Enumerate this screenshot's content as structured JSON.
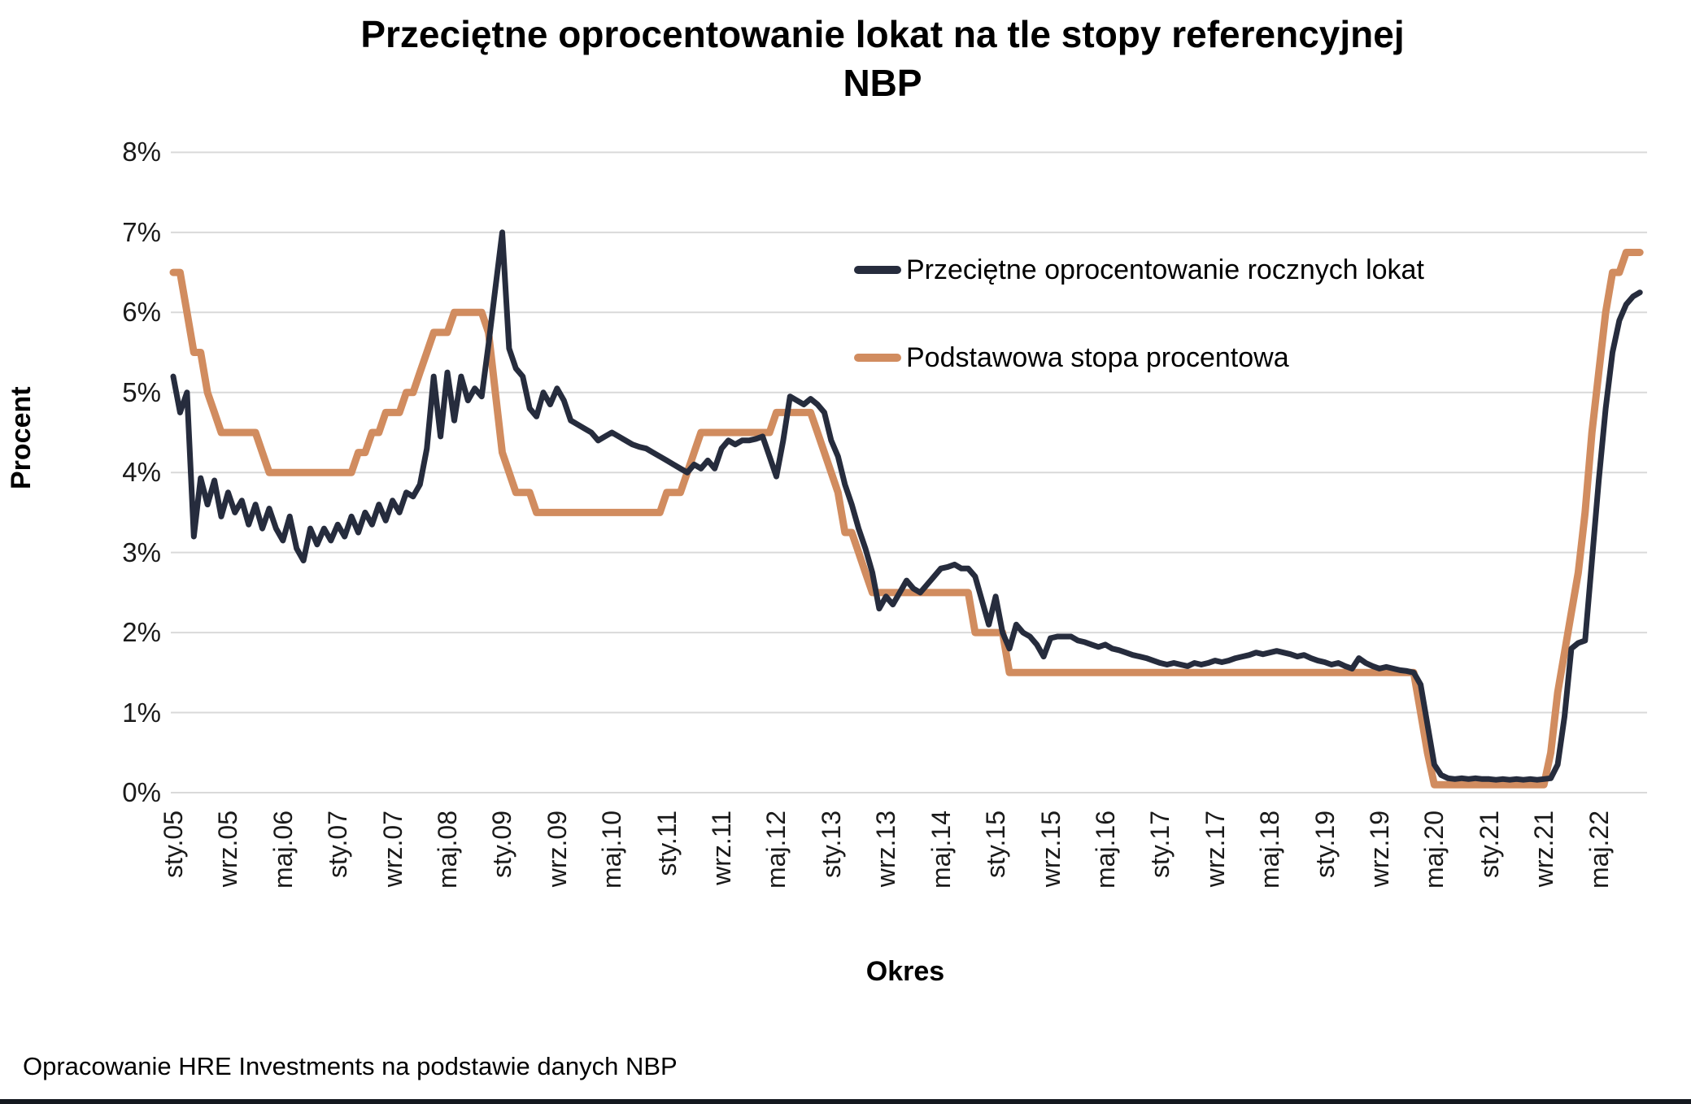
{
  "title": {
    "line1": "Przeciętne oprocentowanie lokat na tle stopy referencyjnej",
    "line2": "NBP"
  },
  "y_axis": {
    "label": "Procent",
    "ticks": [
      "0%",
      "1%",
      "2%",
      "3%",
      "4%",
      "5%",
      "6%",
      "7%",
      "8%"
    ]
  },
  "x_axis": {
    "label": "Okres",
    "ticks": [
      "sty.05",
      "wrz.05",
      "maj.06",
      "sty.07",
      "wrz.07",
      "maj.08",
      "sty.09",
      "wrz.09",
      "maj.10",
      "sty.11",
      "wrz.11",
      "maj.12",
      "sty.13",
      "wrz.13",
      "maj.14",
      "sty.15",
      "wrz.15",
      "maj.16",
      "sty.17",
      "wrz.17",
      "maj.18",
      "sty.19",
      "wrz.19",
      "maj.20",
      "sty.21",
      "wrz.21",
      "maj.22"
    ]
  },
  "footer": "Opracowanie HRE Investments na podstawie danych NBP",
  "colors": {
    "grid": "#D9D9D9",
    "background": "#FFFFFF",
    "bottom_rule": "#14181f",
    "deposit_line": "#262C3D",
    "reference_line": "#D18C5F"
  },
  "chart_data": {
    "type": "line",
    "title": "Przeciętne oprocentowanie lokat na tle stopy referencyjnej NBP",
    "xlabel": "Okres",
    "ylabel": "Procent",
    "ylim": [
      0,
      8
    ],
    "grid": true,
    "legend_position": "upper-right-inside",
    "x_unit": "month",
    "x_range": "2005-01 to 2022-11",
    "tick_every_months": 8,
    "series": [
      {
        "name": "Przeciętne oprocentowanie rocznych lokat",
        "color": "#262C3D",
        "stroke_width": 7,
        "values": [
          5.2,
          4.75,
          5.0,
          3.2,
          3.93,
          3.6,
          3.9,
          3.45,
          3.75,
          3.5,
          3.65,
          3.35,
          3.6,
          3.3,
          3.55,
          3.3,
          3.15,
          3.45,
          3.05,
          2.9,
          3.3,
          3.1,
          3.3,
          3.15,
          3.35,
          3.2,
          3.45,
          3.25,
          3.5,
          3.35,
          3.6,
          3.4,
          3.65,
          3.5,
          3.75,
          3.7,
          3.85,
          4.3,
          5.2,
          4.45,
          5.25,
          4.65,
          5.2,
          4.9,
          5.05,
          4.95,
          5.6,
          6.3,
          7.0,
          5.55,
          5.3,
          5.2,
          4.8,
          4.7,
          5.0,
          4.85,
          5.05,
          4.9,
          4.65,
          4.6,
          4.55,
          4.5,
          4.4,
          4.45,
          4.5,
          4.45,
          4.4,
          4.35,
          4.32,
          4.3,
          4.25,
          4.2,
          4.15,
          4.1,
          4.05,
          4.0,
          4.1,
          4.05,
          4.15,
          4.05,
          4.3,
          4.4,
          4.35,
          4.4,
          4.4,
          4.42,
          4.45,
          4.2,
          3.95,
          4.4,
          4.95,
          4.9,
          4.85,
          4.92,
          4.85,
          4.75,
          4.4,
          4.2,
          3.85,
          3.6,
          3.3,
          3.05,
          2.75,
          2.3,
          2.45,
          2.35,
          2.5,
          2.65,
          2.55,
          2.5,
          2.6,
          2.7,
          2.8,
          2.82,
          2.85,
          2.8,
          2.8,
          2.7,
          2.4,
          2.1,
          2.45,
          2.0,
          1.8,
          2.1,
          2.0,
          1.95,
          1.85,
          1.7,
          1.93,
          1.95,
          1.95,
          1.95,
          1.9,
          1.88,
          1.85,
          1.82,
          1.85,
          1.8,
          1.78,
          1.75,
          1.72,
          1.7,
          1.68,
          1.65,
          1.62,
          1.6,
          1.62,
          1.6,
          1.58,
          1.62,
          1.6,
          1.62,
          1.65,
          1.63,
          1.65,
          1.68,
          1.7,
          1.72,
          1.75,
          1.73,
          1.75,
          1.77,
          1.75,
          1.73,
          1.7,
          1.72,
          1.68,
          1.65,
          1.63,
          1.6,
          1.62,
          1.58,
          1.55,
          1.68,
          1.62,
          1.58,
          1.55,
          1.57,
          1.55,
          1.53,
          1.52,
          1.5,
          1.35,
          0.85,
          0.35,
          0.22,
          0.18,
          0.17,
          0.18,
          0.17,
          0.18,
          0.17,
          0.17,
          0.16,
          0.17,
          0.16,
          0.17,
          0.16,
          0.17,
          0.16,
          0.17,
          0.18,
          0.35,
          0.95,
          1.8,
          1.87,
          1.9,
          2.9,
          3.9,
          4.8,
          5.5,
          5.9,
          6.1,
          6.2,
          6.25
        ]
      },
      {
        "name": "Podstawowa stopa procentowa",
        "color": "#D18C5F",
        "stroke_width": 9,
        "values": [
          6.5,
          6.5,
          6.0,
          5.5,
          5.5,
          5.0,
          4.75,
          4.5,
          4.5,
          4.5,
          4.5,
          4.5,
          4.5,
          4.25,
          4.0,
          4.0,
          4.0,
          4.0,
          4.0,
          4.0,
          4.0,
          4.0,
          4.0,
          4.0,
          4.0,
          4.0,
          4.0,
          4.25,
          4.25,
          4.5,
          4.5,
          4.75,
          4.75,
          4.75,
          5.0,
          5.0,
          5.25,
          5.5,
          5.75,
          5.75,
          5.75,
          6.0,
          6.0,
          6.0,
          6.0,
          6.0,
          5.75,
          5.0,
          4.25,
          4.0,
          3.75,
          3.75,
          3.75,
          3.5,
          3.5,
          3.5,
          3.5,
          3.5,
          3.5,
          3.5,
          3.5,
          3.5,
          3.5,
          3.5,
          3.5,
          3.5,
          3.5,
          3.5,
          3.5,
          3.5,
          3.5,
          3.5,
          3.75,
          3.75,
          3.75,
          4.0,
          4.25,
          4.5,
          4.5,
          4.5,
          4.5,
          4.5,
          4.5,
          4.5,
          4.5,
          4.5,
          4.5,
          4.5,
          4.75,
          4.75,
          4.75,
          4.75,
          4.75,
          4.75,
          4.5,
          4.25,
          4.0,
          3.75,
          3.25,
          3.25,
          3.0,
          2.75,
          2.5,
          2.5,
          2.5,
          2.5,
          2.5,
          2.5,
          2.5,
          2.5,
          2.5,
          2.5,
          2.5,
          2.5,
          2.5,
          2.5,
          2.5,
          2.0,
          2.0,
          2.0,
          2.0,
          2.0,
          1.5,
          1.5,
          1.5,
          1.5,
          1.5,
          1.5,
          1.5,
          1.5,
          1.5,
          1.5,
          1.5,
          1.5,
          1.5,
          1.5,
          1.5,
          1.5,
          1.5,
          1.5,
          1.5,
          1.5,
          1.5,
          1.5,
          1.5,
          1.5,
          1.5,
          1.5,
          1.5,
          1.5,
          1.5,
          1.5,
          1.5,
          1.5,
          1.5,
          1.5,
          1.5,
          1.5,
          1.5,
          1.5,
          1.5,
          1.5,
          1.5,
          1.5,
          1.5,
          1.5,
          1.5,
          1.5,
          1.5,
          1.5,
          1.5,
          1.5,
          1.5,
          1.5,
          1.5,
          1.5,
          1.5,
          1.5,
          1.5,
          1.5,
          1.5,
          1.5,
          1.0,
          0.5,
          0.1,
          0.1,
          0.1,
          0.1,
          0.1,
          0.1,
          0.1,
          0.1,
          0.1,
          0.1,
          0.1,
          0.1,
          0.1,
          0.1,
          0.1,
          0.1,
          0.1,
          0.5,
          1.25,
          1.75,
          2.25,
          2.75,
          3.5,
          4.5,
          5.25,
          6.0,
          6.5,
          6.5,
          6.75,
          6.75,
          6.75
        ]
      }
    ]
  }
}
